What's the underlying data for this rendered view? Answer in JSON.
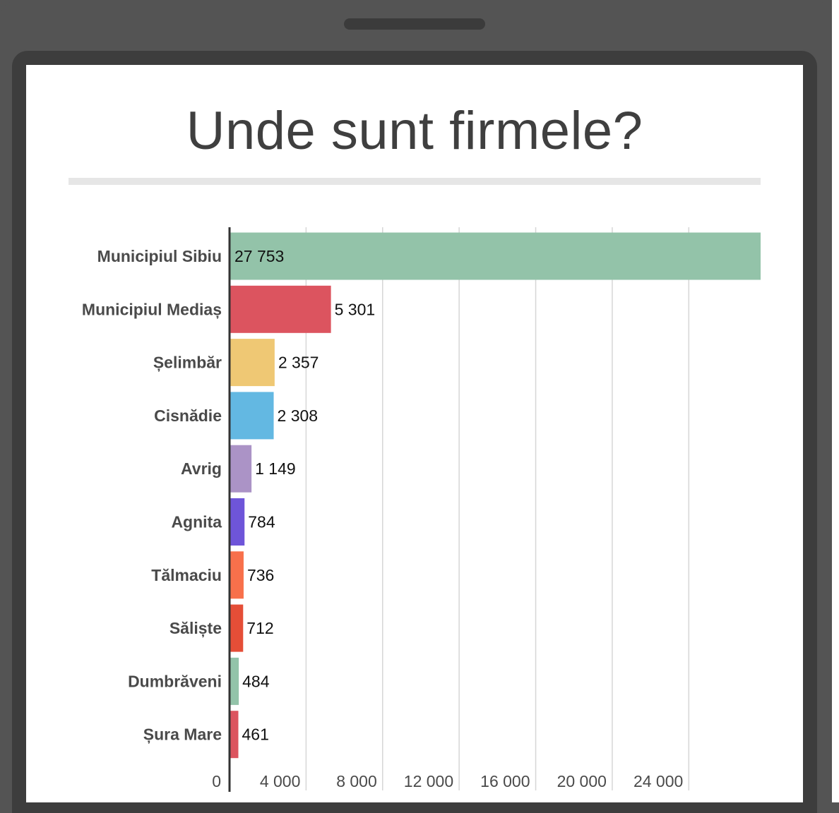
{
  "chart_data": {
    "type": "bar",
    "orientation": "horizontal",
    "title": "Unde sunt firmele?",
    "xlabel": "",
    "ylabel": "",
    "categories": [
      "Municipiul Sibiu",
      "Municipiul Mediaș",
      "Șelimbăr",
      "Cisnădie",
      "Avrig",
      "Agnita",
      "Tălmaciu",
      "Săliște",
      "Dumbrăveni",
      "Șura Mare"
    ],
    "values": [
      27753,
      5301,
      2357,
      2308,
      1149,
      784,
      736,
      712,
      484,
      461
    ],
    "value_labels": [
      "27 753",
      "5 301",
      "2 357",
      "2 308",
      "1 149",
      "784",
      "736",
      "712",
      "484",
      "461"
    ],
    "colors": [
      "#93c3a9",
      "#dc545f",
      "#efc874",
      "#63b8e2",
      "#ab93c6",
      "#6e55d9",
      "#f8704b",
      "#e54e37",
      "#93c3a9",
      "#dc545f"
    ],
    "xlim": [
      0,
      27753
    ],
    "xticks": [
      0,
      4000,
      8000,
      12000,
      16000,
      20000,
      24000
    ],
    "xtick_labels": [
      "0",
      "4 000",
      "8 000",
      "12 000",
      "16 000",
      "20 000",
      "24 000"
    ],
    "grid": true,
    "legend": "none"
  }
}
